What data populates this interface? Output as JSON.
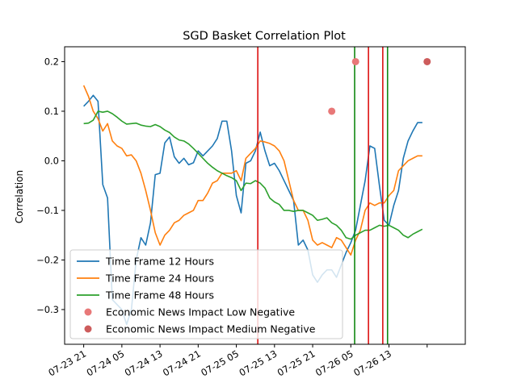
{
  "chart_data": {
    "type": "line",
    "title": "SGD Basket Correlation Plot",
    "xlabel": "",
    "ylabel": "Correlation",
    "ylim": [
      -0.37,
      0.23
    ],
    "xlim": [
      -4,
      80
    ],
    "yticks": [
      0.2,
      0.1,
      0.0,
      -0.1,
      -0.2,
      -0.3
    ],
    "ytick_labels": [
      "0.2",
      "0.1",
      "0.0",
      "−0.1",
      "−0.2",
      "−0.3"
    ],
    "xticks": [
      0,
      8,
      16,
      24,
      32,
      40,
      48,
      56,
      64,
      72
    ],
    "xtick_labels": [
      "07-23 21",
      "07-24 05",
      "07-24 13",
      "07-24 21",
      "07-25 05",
      "07-25 13",
      "07-25 21",
      "07-26 05",
      "07-26 13",
      ""
    ],
    "x_unit_note": "hours",
    "grid": false,
    "legend_position": "lower-left",
    "series": [
      {
        "name": "Time Frame 12 Hours",
        "color": "#1f77b4",
        "values": [
          0.11,
          0.12,
          0.132,
          0.12,
          -0.048,
          -0.075,
          -0.28,
          -0.29,
          -0.3,
          -0.33,
          -0.3,
          -0.2,
          -0.155,
          -0.17,
          -0.125,
          -0.028,
          -0.025,
          0.036,
          0.048,
          0.008,
          -0.005,
          0.005,
          -0.008,
          -0.004,
          0.02,
          0.01,
          0.02,
          0.03,
          0.045,
          0.08,
          0.08,
          0.02,
          -0.07,
          -0.105,
          -0.005,
          0.0,
          0.02,
          0.058,
          0.02,
          -0.01,
          -0.005,
          -0.02,
          -0.04,
          -0.06,
          -0.08,
          -0.17,
          -0.16,
          -0.18,
          -0.23,
          -0.245,
          -0.23,
          -0.22,
          -0.22,
          -0.235,
          -0.21,
          -0.185,
          -0.165,
          -0.14,
          -0.09,
          -0.04,
          0.03,
          0.025,
          -0.05,
          -0.12,
          -0.13,
          -0.09,
          -0.06,
          0.005,
          0.04,
          0.06,
          0.077,
          0.077
        ]
      },
      {
        "name": "Time Frame 24 Hours",
        "color": "#ff7f0e",
        "values": [
          0.152,
          0.13,
          0.1,
          0.085,
          0.06,
          0.075,
          0.04,
          0.03,
          0.025,
          0.01,
          0.012,
          0.0,
          -0.025,
          -0.06,
          -0.1,
          -0.145,
          -0.17,
          -0.15,
          -0.14,
          -0.125,
          -0.12,
          -0.11,
          -0.105,
          -0.1,
          -0.08,
          -0.08,
          -0.065,
          -0.045,
          -0.04,
          -0.025,
          -0.025,
          -0.025,
          -0.02,
          -0.04,
          0.005,
          0.015,
          0.025,
          0.04,
          0.038,
          0.035,
          0.03,
          0.02,
          0.0,
          -0.04,
          -0.08,
          -0.1,
          -0.1,
          -0.12,
          -0.16,
          -0.17,
          -0.165,
          -0.17,
          -0.175,
          -0.155,
          -0.16,
          -0.175,
          -0.19,
          -0.16,
          -0.14,
          -0.1,
          -0.085,
          -0.09,
          -0.085,
          -0.085,
          -0.07,
          -0.06,
          -0.02,
          -0.01,
          0.0,
          0.005,
          0.01,
          0.01
        ]
      },
      {
        "name": "Time Frame 48 Hours",
        "color": "#2ca02c",
        "values": [
          0.075,
          0.076,
          0.082,
          0.1,
          0.098,
          0.1,
          0.095,
          0.088,
          0.08,
          0.074,
          0.075,
          0.076,
          0.072,
          0.07,
          0.069,
          0.073,
          0.069,
          0.062,
          0.057,
          0.048,
          0.042,
          0.04,
          0.034,
          0.025,
          0.015,
          0.005,
          -0.005,
          -0.013,
          -0.02,
          -0.025,
          -0.03,
          -0.034,
          -0.04,
          -0.06,
          -0.045,
          -0.046,
          -0.04,
          -0.045,
          -0.055,
          -0.075,
          -0.083,
          -0.088,
          -0.1,
          -0.1,
          -0.102,
          -0.1,
          -0.1,
          -0.105,
          -0.11,
          -0.12,
          -0.118,
          -0.115,
          -0.125,
          -0.13,
          -0.14,
          -0.155,
          -0.158,
          -0.15,
          -0.145,
          -0.14,
          -0.14,
          -0.135,
          -0.13,
          -0.132,
          -0.13,
          -0.135,
          -0.14,
          -0.15,
          -0.155,
          -0.148,
          -0.143,
          -0.138
        ]
      }
    ],
    "events": [
      {
        "name": "Economic News Impact Low Negative",
        "color": "#e87878",
        "points": [
          {
            "x": 52,
            "y": 0.1
          },
          {
            "x": 57,
            "y": 0.2
          }
        ]
      },
      {
        "name": "Economic News Impact Medium Negative",
        "color": "#cd5c5c",
        "points": [
          {
            "x": 72,
            "y": 0.2
          }
        ]
      }
    ],
    "vlines": [
      {
        "x": 36.5,
        "color": "#dd1111"
      },
      {
        "x": 56.8,
        "color": "#118811"
      },
      {
        "x": 59.7,
        "color": "#dd1111"
      },
      {
        "x": 62.7,
        "color": "#dd1111"
      },
      {
        "x": 63.7,
        "color": "#118811"
      }
    ]
  }
}
